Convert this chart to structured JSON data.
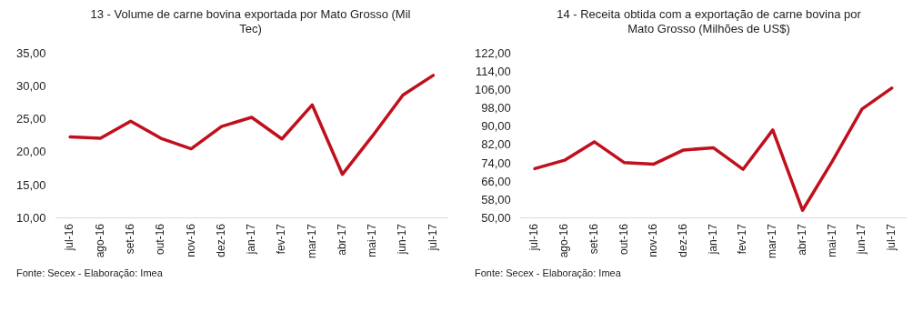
{
  "chart_data": [
    {
      "type": "line",
      "title": "13 - Volume de carne bovina exportada por Mato Grosso (Mil Tec)",
      "categories": [
        "jul-16",
        "ago-16",
        "set-16",
        "out-16",
        "nov-16",
        "dez-16",
        "jan-17",
        "fev-17",
        "mar-17",
        "abr-17",
        "mai-17",
        "jun-17",
        "jul-17"
      ],
      "series": [
        {
          "color": "#c0101e",
          "values": [
            22.4,
            22.2,
            24.8,
            22.2,
            20.6,
            24.0,
            25.4,
            22.1,
            27.3,
            16.7,
            22.6,
            28.8,
            31.8
          ]
        }
      ],
      "ylim": [
        10,
        35
      ],
      "yticks": [
        {
          "value": 10,
          "label": "10,00"
        },
        {
          "value": 15,
          "label": "15,00"
        },
        {
          "value": 20,
          "label": "20,00"
        },
        {
          "value": 25,
          "label": "25,00"
        },
        {
          "value": 30,
          "label": "30,00"
        },
        {
          "value": 35,
          "label": "35,00"
        }
      ],
      "grid": false,
      "legend": false,
      "marker": "none",
      "line_style": "solid",
      "annotations": [
        "Fonte: Secex - Elaboração: Imea"
      ]
    },
    {
      "type": "line",
      "title": "14 - Receita obtida com a exportação de carne bovina por Mato Grosso (Milhões de US$)",
      "categories": [
        "jul-16",
        "ago-16",
        "set-16",
        "out-16",
        "nov-16",
        "dez-16",
        "jan-17",
        "fev-17",
        "mar-17",
        "abr-17",
        "mai-17",
        "jun-17",
        "jul-17"
      ],
      "series": [
        {
          "color": "#c0101e",
          "values": [
            71.8,
            75.5,
            83.6,
            74.5,
            73.8,
            80.0,
            81.0,
            71.5,
            88.8,
            53.5,
            75.0,
            98.0,
            107.2
          ]
        }
      ],
      "ylim": [
        50,
        122
      ],
      "yticks": [
        {
          "value": 50,
          "label": "50,00"
        },
        {
          "value": 58,
          "label": "58,00"
        },
        {
          "value": 66,
          "label": "66,00"
        },
        {
          "value": 74,
          "label": "74,00"
        },
        {
          "value": 82,
          "label": "82,00"
        },
        {
          "value": 90,
          "label": "90,00"
        },
        {
          "value": 98,
          "label": "98,00"
        },
        {
          "value": 106,
          "label": "106,00"
        },
        {
          "value": 114,
          "label": "114,00"
        },
        {
          "value": 122,
          "label": "122,00"
        }
      ],
      "grid": false,
      "legend": false,
      "marker": "none",
      "line_style": "solid",
      "annotations": [
        "Fonte: Secex - Elaboração: Imea"
      ]
    }
  ]
}
